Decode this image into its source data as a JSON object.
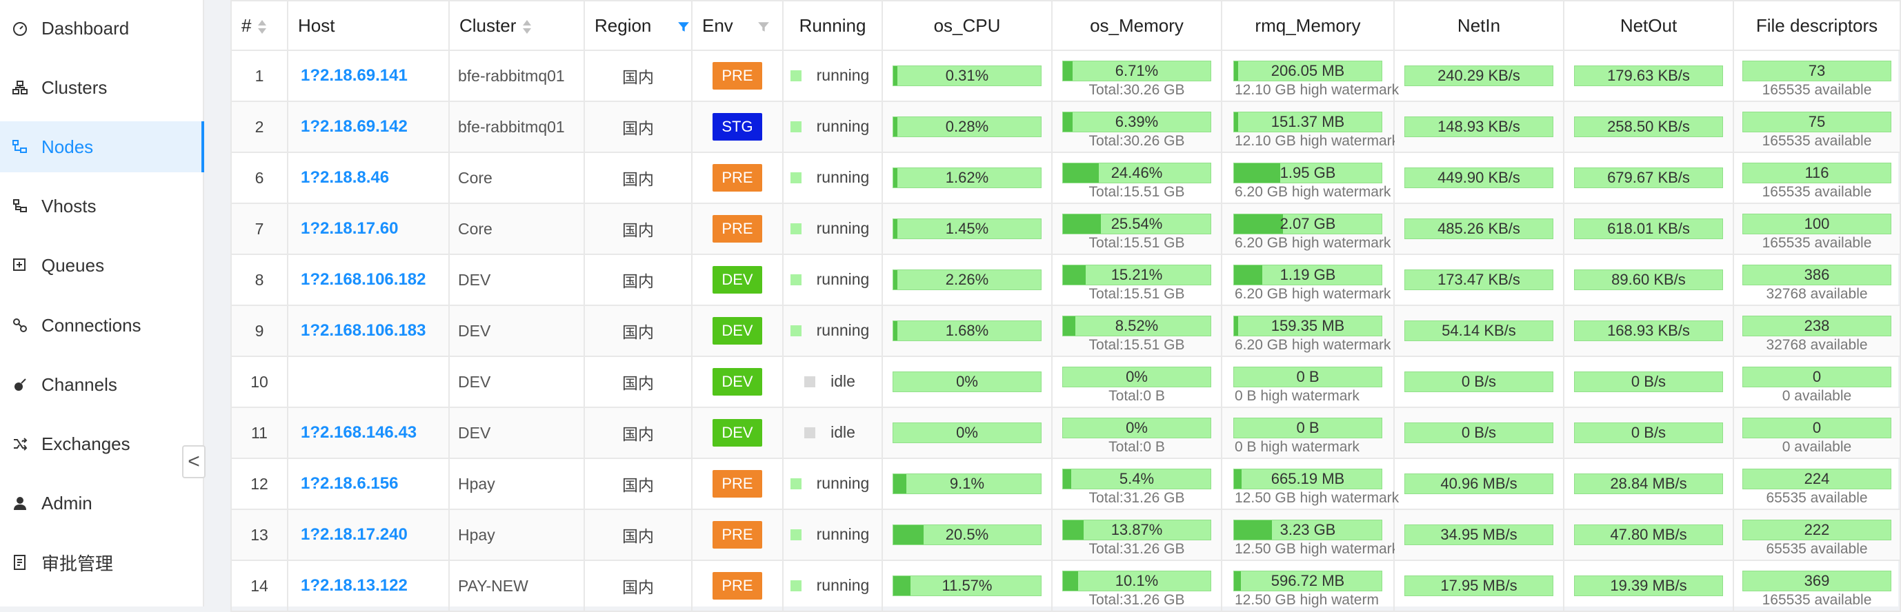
{
  "sidebar": {
    "items": [
      {
        "label": "Dashboard",
        "icon": "dashboard-icon",
        "active": false
      },
      {
        "label": "Clusters",
        "icon": "clusters-icon",
        "active": false
      },
      {
        "label": "Nodes",
        "icon": "nodes-icon",
        "active": true
      },
      {
        "label": "Vhosts",
        "icon": "vhosts-icon",
        "active": false
      },
      {
        "label": "Queues",
        "icon": "queues-icon",
        "active": false
      },
      {
        "label": "Connections",
        "icon": "connections-icon",
        "active": false
      },
      {
        "label": "Channels",
        "icon": "channels-icon",
        "active": false
      },
      {
        "label": "Exchanges",
        "icon": "exchanges-icon",
        "active": false
      },
      {
        "label": "Admin",
        "icon": "admin-icon",
        "active": false
      },
      {
        "label": "审批管理",
        "icon": "approval-icon",
        "active": false
      }
    ],
    "collapse_glyph": "<"
  },
  "colors": {
    "accent": "#1890ff",
    "pre": "#f0862a",
    "stg": "#0a1ee0",
    "dev": "#52c41a",
    "running": "#a9f3a1",
    "idle": "#d9d9d9",
    "bar_bg": "#a9f3a1",
    "bar_fill": "#55c64a"
  },
  "table": {
    "headers": {
      "num": "#",
      "host": "Host",
      "cluster": "Cluster",
      "region": "Region",
      "env": "Env",
      "running": "Running",
      "cpu": "os_CPU",
      "mem": "os_Memory",
      "rmq": "rmq_Memory",
      "netin": "NetIn",
      "netout": "NetOut",
      "fd": "File descriptors"
    },
    "rows": [
      {
        "num": "1",
        "host": "1?2.18.69.141",
        "cluster": "bfe-rabbitmq01",
        "region": "国内",
        "env": "PRE",
        "running": "running",
        "cpu": 0.31,
        "cpu_label": "0.31%",
        "mem": 6.71,
        "mem_label": "6.71%",
        "mem_total": "Total:30.26 GB",
        "rmq": 1.7,
        "rmq_label": "206.05 MB",
        "rmq_sub": "12.10 GB high watermark",
        "netin": "240.29 KB/s",
        "netout": "179.63 KB/s",
        "fd": "73",
        "fd_sub": "165535 available"
      },
      {
        "num": "2",
        "host": "1?2.18.69.142",
        "cluster": "bfe-rabbitmq01",
        "region": "国内",
        "env": "STG",
        "running": "running",
        "cpu": 0.28,
        "cpu_label": "0.28%",
        "mem": 6.39,
        "mem_label": "6.39%",
        "mem_total": "Total:30.26 GB",
        "rmq": 1.25,
        "rmq_label": "151.37 MB",
        "rmq_sub": "12.10 GB high watermark",
        "netin": "148.93 KB/s",
        "netout": "258.50 KB/s",
        "fd": "75",
        "fd_sub": "165535 available"
      },
      {
        "num": "6",
        "host": "1?2.18.8.46",
        "cluster": "Core",
        "region": "国内",
        "env": "PRE",
        "running": "running",
        "cpu": 1.62,
        "cpu_label": "1.62%",
        "mem": 24.46,
        "mem_label": "24.46%",
        "mem_total": "Total:15.51 GB",
        "rmq": 31.45,
        "rmq_label": "1.95 GB",
        "rmq_sub": "6.20 GB high watermark",
        "netin": "449.90 KB/s",
        "netout": "679.67 KB/s",
        "fd": "116",
        "fd_sub": "165535 available"
      },
      {
        "num": "7",
        "host": "1?2.18.17.60",
        "cluster": "Core",
        "region": "国内",
        "env": "PRE",
        "running": "running",
        "cpu": 1.45,
        "cpu_label": "1.45%",
        "mem": 25.54,
        "mem_label": "25.54%",
        "mem_total": "Total:15.51 GB",
        "rmq": 33.39,
        "rmq_label": "2.07 GB",
        "rmq_sub": "6.20 GB high watermark",
        "netin": "485.26 KB/s",
        "netout": "618.01 KB/s",
        "fd": "100",
        "fd_sub": "165535 available"
      },
      {
        "num": "8",
        "host": "1?2.168.106.182",
        "cluster": "DEV",
        "region": "国内",
        "env": "DEV",
        "running": "running",
        "cpu": 2.26,
        "cpu_label": "2.26%",
        "mem": 15.21,
        "mem_label": "15.21%",
        "mem_total": "Total:15.51 GB",
        "rmq": 19.19,
        "rmq_label": "1.19 GB",
        "rmq_sub": "6.20 GB high watermark",
        "netin": "173.47 KB/s",
        "netout": "89.60 KB/s",
        "fd": "386",
        "fd_sub": "32768 available"
      },
      {
        "num": "9",
        "host": "1?2.168.106.183",
        "cluster": "DEV",
        "region": "国内",
        "env": "DEV",
        "running": "running",
        "cpu": 1.68,
        "cpu_label": "1.68%",
        "mem": 8.52,
        "mem_label": "8.52%",
        "mem_total": "Total:15.51 GB",
        "rmq": 2.5,
        "rmq_label": "159.35 MB",
        "rmq_sub": "6.20 GB high watermark",
        "netin": "54.14 KB/s",
        "netout": "168.93 KB/s",
        "fd": "238",
        "fd_sub": "32768 available"
      },
      {
        "num": "10",
        "host": "",
        "cluster": "DEV",
        "region": "国内",
        "env": "DEV",
        "running": "idle",
        "cpu": 0,
        "cpu_label": "0%",
        "mem": 0,
        "mem_label": "0%",
        "mem_total": "Total:0 B",
        "rmq": 0,
        "rmq_label": "0 B",
        "rmq_sub": "0 B high watermark",
        "netin": "0 B/s",
        "netout": "0 B/s",
        "fd": "0",
        "fd_sub": "0 available"
      },
      {
        "num": "11",
        "host": "1?2.168.146.43",
        "cluster": "DEV",
        "region": "国内",
        "env": "DEV",
        "running": "idle",
        "cpu": 0,
        "cpu_label": "0%",
        "mem": 0,
        "mem_label": "0%",
        "mem_total": "Total:0 B",
        "rmq": 0,
        "rmq_label": "0 B",
        "rmq_sub": "0 B high watermark",
        "netin": "0 B/s",
        "netout": "0 B/s",
        "fd": "0",
        "fd_sub": "0 available"
      },
      {
        "num": "12",
        "host": "1?2.18.6.156",
        "cluster": "Hpay",
        "region": "国内",
        "env": "PRE",
        "running": "running",
        "cpu": 9.1,
        "cpu_label": "9.1%",
        "mem": 5.4,
        "mem_label": "5.4%",
        "mem_total": "Total:31.26 GB",
        "rmq": 5.2,
        "rmq_label": "665.19 MB",
        "rmq_sub": "12.50 GB high watermark",
        "netin": "40.96 MB/s",
        "netout": "28.84 MB/s",
        "fd": "224",
        "fd_sub": "65535 available"
      },
      {
        "num": "13",
        "host": "1?2.18.17.240",
        "cluster": "Hpay",
        "region": "国内",
        "env": "PRE",
        "running": "running",
        "cpu": 20.5,
        "cpu_label": "20.5%",
        "mem": 13.87,
        "mem_label": "13.87%",
        "mem_total": "Total:31.26 GB",
        "rmq": 25.84,
        "rmq_label": "3.23 GB",
        "rmq_sub": "12.50 GB high watermark",
        "netin": "34.95 MB/s",
        "netout": "47.80 MB/s",
        "fd": "222",
        "fd_sub": "65535 available"
      },
      {
        "num": "14",
        "host": "1?2.18.13.122",
        "cluster": "PAY-NEW",
        "region": "国内",
        "env": "PRE",
        "running": "running",
        "cpu": 11.57,
        "cpu_label": "11.57%",
        "mem": 10.1,
        "mem_label": "10.1%",
        "mem_total": "Total:31.26 GB",
        "rmq": 4.66,
        "rmq_label": "596.72 MB",
        "rmq_sub": "12.50 GB high waterm",
        "netin": "17.95 MB/s",
        "netout": "19.39 MB/s",
        "fd": "369",
        "fd_sub": "165535 available"
      }
    ]
  }
}
